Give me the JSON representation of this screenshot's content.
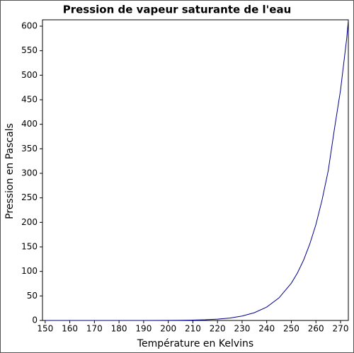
{
  "chart_data": {
    "type": "line",
    "title": "Pression de vapeur saturante de l'eau",
    "x_label": "Température en Kelvins",
    "y_label": "Pression en Pascals",
    "x": [
      150,
      160,
      170,
      180,
      190,
      200,
      205,
      210,
      215,
      220,
      225,
      230,
      235,
      240,
      245,
      250,
      252.5,
      255,
      257.5,
      260,
      262.5,
      265,
      267.5,
      270,
      272.5,
      273.16
    ],
    "values": [
      6e-06,
      3e-05,
      0.0005,
      0.005,
      0.03,
      0.16,
      0.34,
      0.7,
      1.38,
      2.65,
      4.94,
      8.97,
      15.9,
      27.3,
      46.1,
      76,
      97,
      123.3,
      156,
      195.8,
      246,
      305.5,
      390,
      470,
      575,
      611.7
    ],
    "color": "#00008b",
    "xlim": [
      148.9,
      273.16
    ],
    "ylim": [
      0,
      613
    ],
    "xticks": [
      150,
      160,
      170,
      180,
      190,
      200,
      210,
      220,
      230,
      240,
      250,
      260,
      270
    ],
    "yticks": [
      0,
      50,
      100,
      150,
      200,
      250,
      300,
      350,
      400,
      450,
      500,
      550,
      600
    ]
  }
}
